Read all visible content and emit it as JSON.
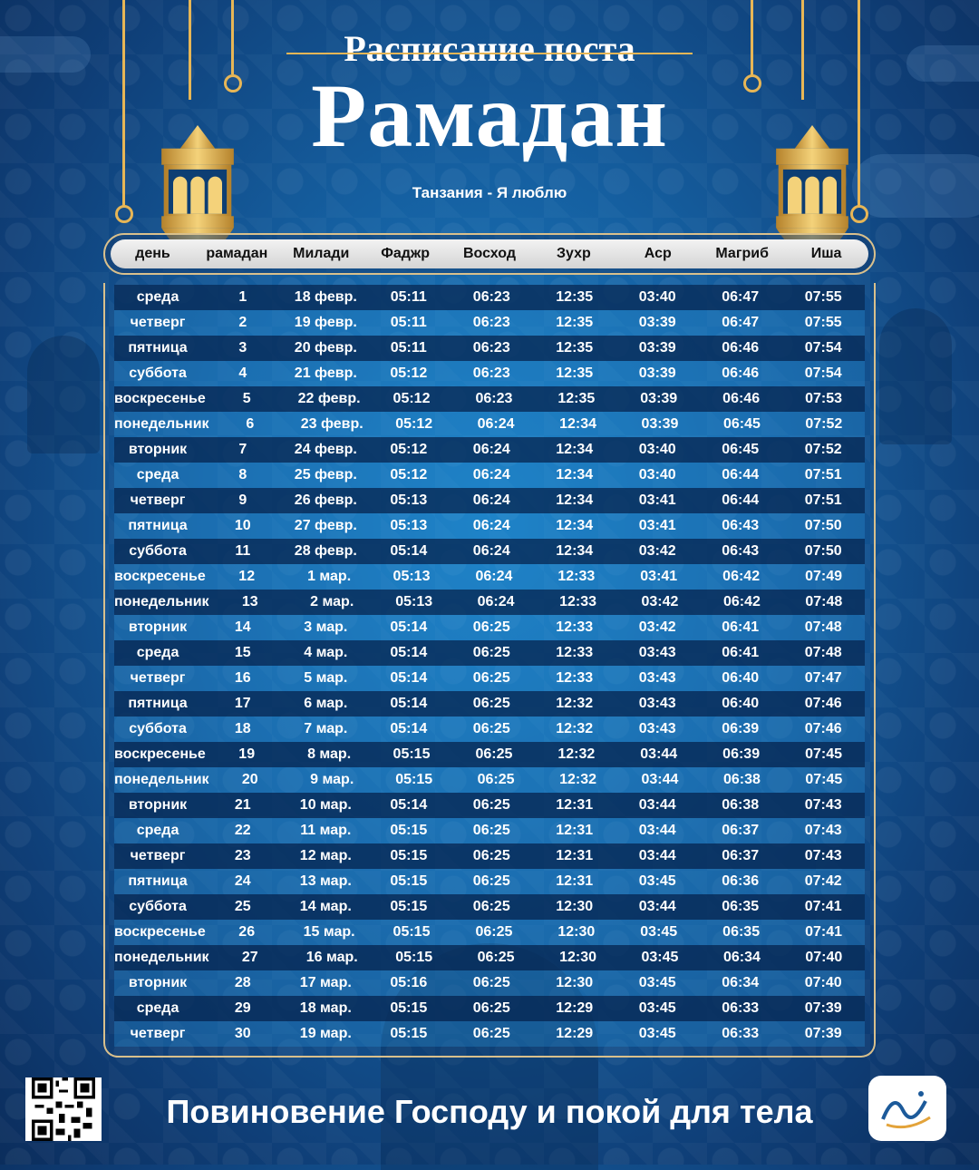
{
  "header": {
    "title_top": "Расписание поста",
    "title_main": "Рамадан",
    "subtitle": "Танзания - Я люблю"
  },
  "columns": [
    "день",
    "рамадан",
    "Милади",
    "Фаджр",
    "Восход",
    "Зухр",
    "Аср",
    "Магриб",
    "Иша"
  ],
  "rows": [
    [
      "среда",
      "1",
      "18 февр.",
      "05:11",
      "06:23",
      "12:35",
      "03:40",
      "06:47",
      "07:55"
    ],
    [
      "четверг",
      "2",
      "19 февр.",
      "05:11",
      "06:23",
      "12:35",
      "03:39",
      "06:47",
      "07:55"
    ],
    [
      "пятница",
      "3",
      "20 февр.",
      "05:11",
      "06:23",
      "12:35",
      "03:39",
      "06:46",
      "07:54"
    ],
    [
      "суббота",
      "4",
      "21 февр.",
      "05:12",
      "06:23",
      "12:35",
      "03:39",
      "06:46",
      "07:54"
    ],
    [
      "воскресенье",
      "5",
      "22 февр.",
      "05:12",
      "06:23",
      "12:35",
      "03:39",
      "06:46",
      "07:53"
    ],
    [
      "понедельник",
      "6",
      "23 февр.",
      "05:12",
      "06:24",
      "12:34",
      "03:39",
      "06:45",
      "07:52"
    ],
    [
      "вторник",
      "7",
      "24 февр.",
      "05:12",
      "06:24",
      "12:34",
      "03:40",
      "06:45",
      "07:52"
    ],
    [
      "среда",
      "8",
      "25 февр.",
      "05:12",
      "06:24",
      "12:34",
      "03:40",
      "06:44",
      "07:51"
    ],
    [
      "четверг",
      "9",
      "26 февр.",
      "05:13",
      "06:24",
      "12:34",
      "03:41",
      "06:44",
      "07:51"
    ],
    [
      "пятница",
      "10",
      "27 февр.",
      "05:13",
      "06:24",
      "12:34",
      "03:41",
      "06:43",
      "07:50"
    ],
    [
      "суббота",
      "11",
      "28 февр.",
      "05:14",
      "06:24",
      "12:34",
      "03:42",
      "06:43",
      "07:50"
    ],
    [
      "воскресенье",
      "12",
      "1 мар.",
      "05:13",
      "06:24",
      "12:33",
      "03:41",
      "06:42",
      "07:49"
    ],
    [
      "понедельник",
      "13",
      "2 мар.",
      "05:13",
      "06:24",
      "12:33",
      "03:42",
      "06:42",
      "07:48"
    ],
    [
      "вторник",
      "14",
      "3 мар.",
      "05:14",
      "06:25",
      "12:33",
      "03:42",
      "06:41",
      "07:48"
    ],
    [
      "среда",
      "15",
      "4 мар.",
      "05:14",
      "06:25",
      "12:33",
      "03:43",
      "06:41",
      "07:48"
    ],
    [
      "четверг",
      "16",
      "5 мар.",
      "05:14",
      "06:25",
      "12:33",
      "03:43",
      "06:40",
      "07:47"
    ],
    [
      "пятница",
      "17",
      "6 мар.",
      "05:14",
      "06:25",
      "12:32",
      "03:43",
      "06:40",
      "07:46"
    ],
    [
      "суббота",
      "18",
      "7 мар.",
      "05:14",
      "06:25",
      "12:32",
      "03:43",
      "06:39",
      "07:46"
    ],
    [
      "воскресенье",
      "19",
      "8 мар.",
      "05:15",
      "06:25",
      "12:32",
      "03:44",
      "06:39",
      "07:45"
    ],
    [
      "понедельник",
      "20",
      "9 мар.",
      "05:15",
      "06:25",
      "12:32",
      "03:44",
      "06:38",
      "07:45"
    ],
    [
      "вторник",
      "21",
      "10 мар.",
      "05:14",
      "06:25",
      "12:31",
      "03:44",
      "06:38",
      "07:43"
    ],
    [
      "среда",
      "22",
      "11 мар.",
      "05:15",
      "06:25",
      "12:31",
      "03:44",
      "06:37",
      "07:43"
    ],
    [
      "четверг",
      "23",
      "12 мар.",
      "05:15",
      "06:25",
      "12:31",
      "03:44",
      "06:37",
      "07:43"
    ],
    [
      "пятница",
      "24",
      "13 мар.",
      "05:15",
      "06:25",
      "12:31",
      "03:45",
      "06:36",
      "07:42"
    ],
    [
      "суббота",
      "25",
      "14 мар.",
      "05:15",
      "06:25",
      "12:30",
      "03:44",
      "06:35",
      "07:41"
    ],
    [
      "воскресенье",
      "26",
      "15 мар.",
      "05:15",
      "06:25",
      "12:30",
      "03:45",
      "06:35",
      "07:41"
    ],
    [
      "понедельник",
      "27",
      "16 мар.",
      "05:15",
      "06:25",
      "12:30",
      "03:45",
      "06:34",
      "07:40"
    ],
    [
      "вторник",
      "28",
      "17 мар.",
      "05:16",
      "06:25",
      "12:30",
      "03:45",
      "06:34",
      "07:40"
    ],
    [
      "среда",
      "29",
      "18 мар.",
      "05:15",
      "06:25",
      "12:29",
      "03:45",
      "06:33",
      "07:39"
    ],
    [
      "четверг",
      "30",
      "19 мар.",
      "05:15",
      "06:25",
      "12:29",
      "03:45",
      "06:33",
      "07:39"
    ]
  ],
  "footer": {
    "slogan": "Повиновение Господу и покой для тела",
    "qr_icon": "qr-code-icon",
    "logo_icon": "calligraphy-logo-icon"
  },
  "colors": {
    "gold": "#e7b656",
    "header_bg": "#e4e4e4",
    "row_dark": "#0a2e5c",
    "row_light": "#2a8cd2"
  }
}
